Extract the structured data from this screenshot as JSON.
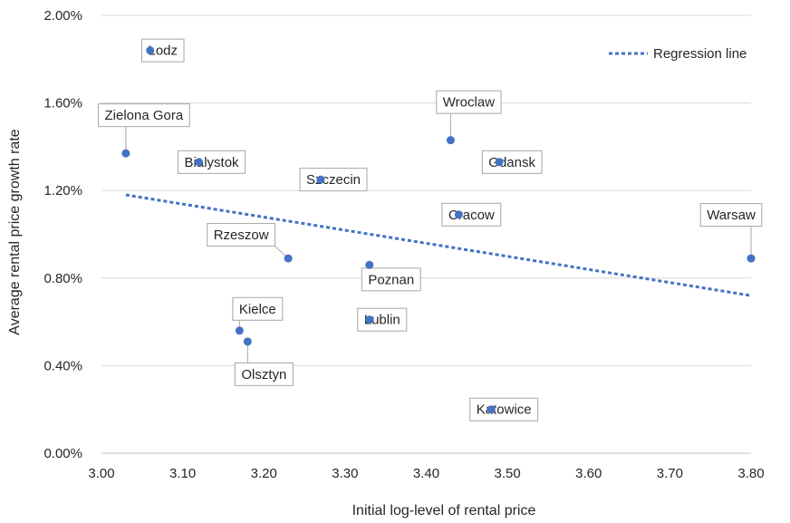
{
  "chart_data": {
    "type": "scatter",
    "xlabel": "Initial log-level of rental price",
    "ylabel": "Average rental price growth rate",
    "xlim": [
      3.0,
      3.8
    ],
    "ylim": [
      0.0,
      0.02
    ],
    "x_ticks": [
      "3.00",
      "3.10",
      "3.20",
      "3.30",
      "3.40",
      "3.50",
      "3.60",
      "3.70",
      "3.80"
    ],
    "y_ticks": [
      "0.00%",
      "0.40%",
      "0.80%",
      "1.20%",
      "1.60%",
      "2.00%"
    ],
    "grid": "horizontal",
    "legend": {
      "position": "top-right",
      "entries": [
        "Regression line"
      ]
    },
    "colors": {
      "points": "#4472c4",
      "regression": "#4472c4",
      "grid": "#d9d9d9"
    },
    "points": [
      {
        "label": "Lodz",
        "x": 3.06,
        "y": 0.0184
      },
      {
        "label": "Zielona Gora",
        "x": 3.03,
        "y": 0.0137
      },
      {
        "label": "Bialystok",
        "x": 3.12,
        "y": 0.0133
      },
      {
        "label": "Szczecin",
        "x": 3.27,
        "y": 0.0125
      },
      {
        "label": "Wroclaw",
        "x": 3.43,
        "y": 0.0143
      },
      {
        "label": "Gdansk",
        "x": 3.49,
        "y": 0.0133
      },
      {
        "label": "Cracow",
        "x": 3.44,
        "y": 0.0109
      },
      {
        "label": "Warsaw",
        "x": 3.8,
        "y": 0.0089
      },
      {
        "label": "Rzeszow",
        "x": 3.23,
        "y": 0.0089
      },
      {
        "label": "Poznan",
        "x": 3.33,
        "y": 0.0086
      },
      {
        "label": "Lublin",
        "x": 3.33,
        "y": 0.0061
      },
      {
        "label": "Kielce",
        "x": 3.17,
        "y": 0.0056
      },
      {
        "label": "Olsztyn",
        "x": 3.18,
        "y": 0.0051
      },
      {
        "label": "Katowice",
        "x": 3.48,
        "y": 0.002
      }
    ],
    "regression": {
      "x": [
        3.03,
        3.8
      ],
      "y": [
        0.0118,
        0.0072
      ]
    }
  }
}
